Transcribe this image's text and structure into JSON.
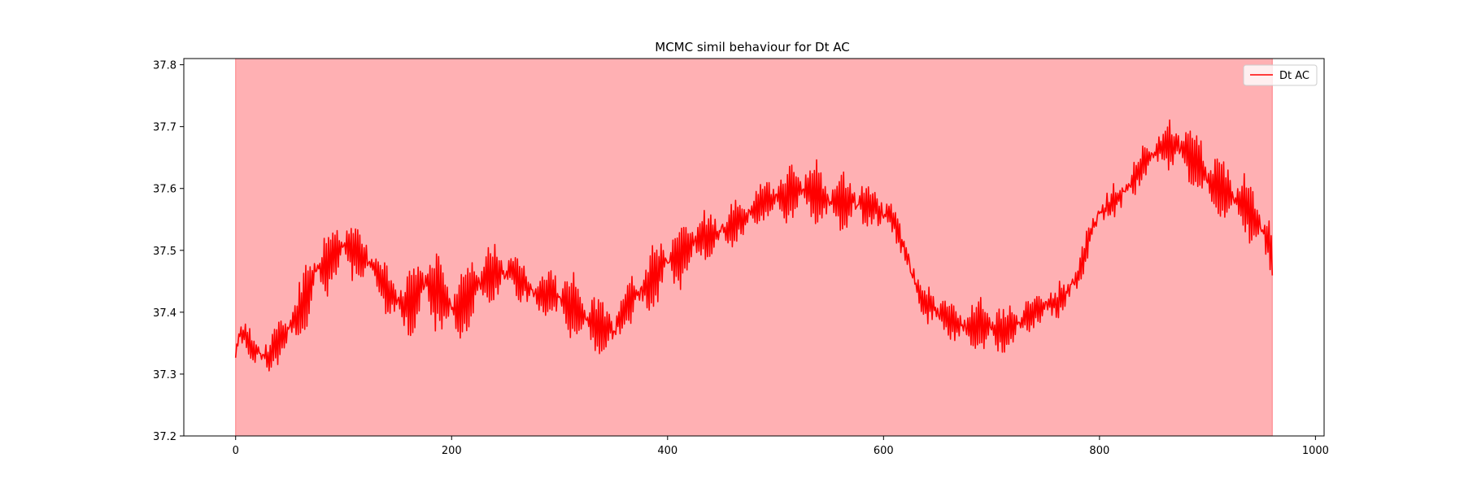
{
  "chart_data": {
    "type": "line",
    "title": "MCMC simil behaviour for Dt AC",
    "xlabel": "",
    "ylabel": "",
    "xlim": [
      -48,
      1008
    ],
    "ylim": [
      37.2,
      37.81
    ],
    "xticks": [
      0,
      200,
      400,
      600,
      800,
      1000
    ],
    "yticks": [
      37.2,
      37.3,
      37.4,
      37.5,
      37.6,
      37.7,
      37.8
    ],
    "shaded_region": {
      "x_start": 0,
      "x_end": 960,
      "color": "#ffb0b3"
    },
    "legend": {
      "position": "top-right",
      "entries": [
        "Dt AC"
      ]
    },
    "grid": false,
    "series": [
      {
        "name": "Dt AC",
        "color": "#ff0000",
        "anchors": [
          [
            0,
            37.33
          ],
          [
            5,
            37.37
          ],
          [
            15,
            37.34
          ],
          [
            30,
            37.33
          ],
          [
            45,
            37.36
          ],
          [
            60,
            37.4
          ],
          [
            75,
            37.47
          ],
          [
            85,
            37.48
          ],
          [
            100,
            37.51
          ],
          [
            115,
            37.49
          ],
          [
            130,
            37.47
          ],
          [
            145,
            37.42
          ],
          [
            160,
            37.41
          ],
          [
            175,
            37.45
          ],
          [
            190,
            37.43
          ],
          [
            205,
            37.4
          ],
          [
            225,
            37.45
          ],
          [
            245,
            37.47
          ],
          [
            260,
            37.46
          ],
          [
            275,
            37.43
          ],
          [
            295,
            37.43
          ],
          [
            315,
            37.4
          ],
          [
            335,
            37.38
          ],
          [
            350,
            37.37
          ],
          [
            365,
            37.42
          ],
          [
            380,
            37.44
          ],
          [
            395,
            37.48
          ],
          [
            410,
            37.49
          ],
          [
            430,
            37.52
          ],
          [
            450,
            37.53
          ],
          [
            470,
            37.55
          ],
          [
            490,
            37.58
          ],
          [
            510,
            37.59
          ],
          [
            530,
            37.6
          ],
          [
            550,
            37.58
          ],
          [
            570,
            37.58
          ],
          [
            590,
            37.57
          ],
          [
            610,
            37.55
          ],
          [
            620,
            37.5
          ],
          [
            635,
            37.42
          ],
          [
            650,
            37.4
          ],
          [
            670,
            37.38
          ],
          [
            690,
            37.38
          ],
          [
            710,
            37.37
          ],
          [
            725,
            37.38
          ],
          [
            745,
            37.41
          ],
          [
            765,
            37.42
          ],
          [
            780,
            37.46
          ],
          [
            790,
            37.52
          ],
          [
            800,
            37.56
          ],
          [
            815,
            37.58
          ],
          [
            830,
            37.61
          ],
          [
            845,
            37.65
          ],
          [
            860,
            37.67
          ],
          [
            875,
            37.67
          ],
          [
            890,
            37.64
          ],
          [
            905,
            37.6
          ],
          [
            920,
            37.59
          ],
          [
            935,
            37.57
          ],
          [
            945,
            37.55
          ],
          [
            955,
            37.52
          ],
          [
            960,
            37.49
          ]
        ],
        "n_points": 961,
        "oscillation": {
          "amplitude_anchors": [
            [
              0,
              0.015
            ],
            [
              40,
              0.035
            ],
            [
              70,
              0.06
            ],
            [
              130,
              0.04
            ],
            [
              150,
              0.05
            ],
            [
              190,
              0.07
            ],
            [
              230,
              0.05
            ],
            [
              270,
              0.03
            ],
            [
              320,
              0.06
            ],
            [
              360,
              0.035
            ],
            [
              400,
              0.06
            ],
            [
              470,
              0.03
            ],
            [
              520,
              0.05
            ],
            [
              580,
              0.04
            ],
            [
              620,
              0.02
            ],
            [
              700,
              0.045
            ],
            [
              760,
              0.025
            ],
            [
              800,
              0.02
            ],
            [
              860,
              0.035
            ],
            [
              890,
              0.06
            ],
            [
              960,
              0.05
            ]
          ]
        }
      }
    ]
  }
}
